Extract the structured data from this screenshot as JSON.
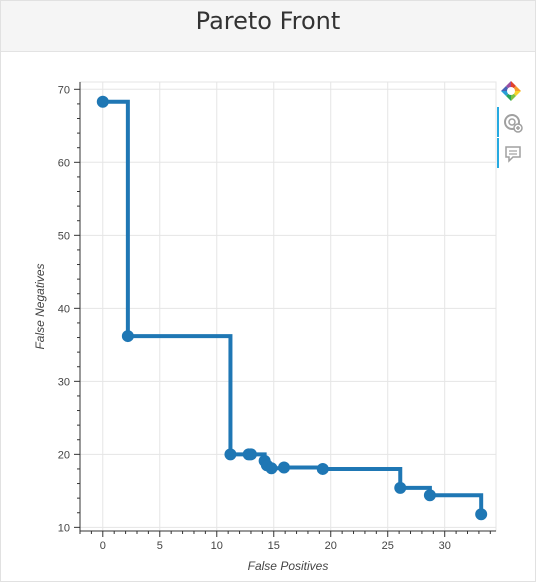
{
  "page": {
    "title": "Pareto Front"
  },
  "toolbar": {
    "tools": [
      {
        "name": "bokeh-logo-icon",
        "active": false
      },
      {
        "name": "wheel-zoom-icon",
        "active": true
      },
      {
        "name": "hover-tooltip-icon",
        "active": true
      }
    ]
  },
  "chart_data": {
    "type": "line",
    "step": true,
    "title": "Pareto Front",
    "xlabel": "False Positives",
    "ylabel": "False Negatives",
    "xlim": [
      -2,
      34.5
    ],
    "ylim": [
      9.5,
      71
    ],
    "x_ticks": [
      0,
      5,
      10,
      15,
      20,
      25,
      30
    ],
    "y_ticks": [
      10,
      20,
      30,
      40,
      50,
      60,
      70
    ],
    "grid": true,
    "color": "#1f77b4",
    "series": [
      {
        "x": [
          0,
          2.2,
          11.2,
          12.8,
          13,
          14.2,
          14.4,
          14.8,
          15.9,
          19.3,
          26.1,
          28.7,
          33.2
        ],
        "y": [
          68.3,
          36.2,
          20.0,
          20.0,
          20.0,
          19.1,
          18.5,
          18.1,
          18.2,
          18.0,
          15.4,
          14.4,
          11.8
        ]
      }
    ]
  }
}
